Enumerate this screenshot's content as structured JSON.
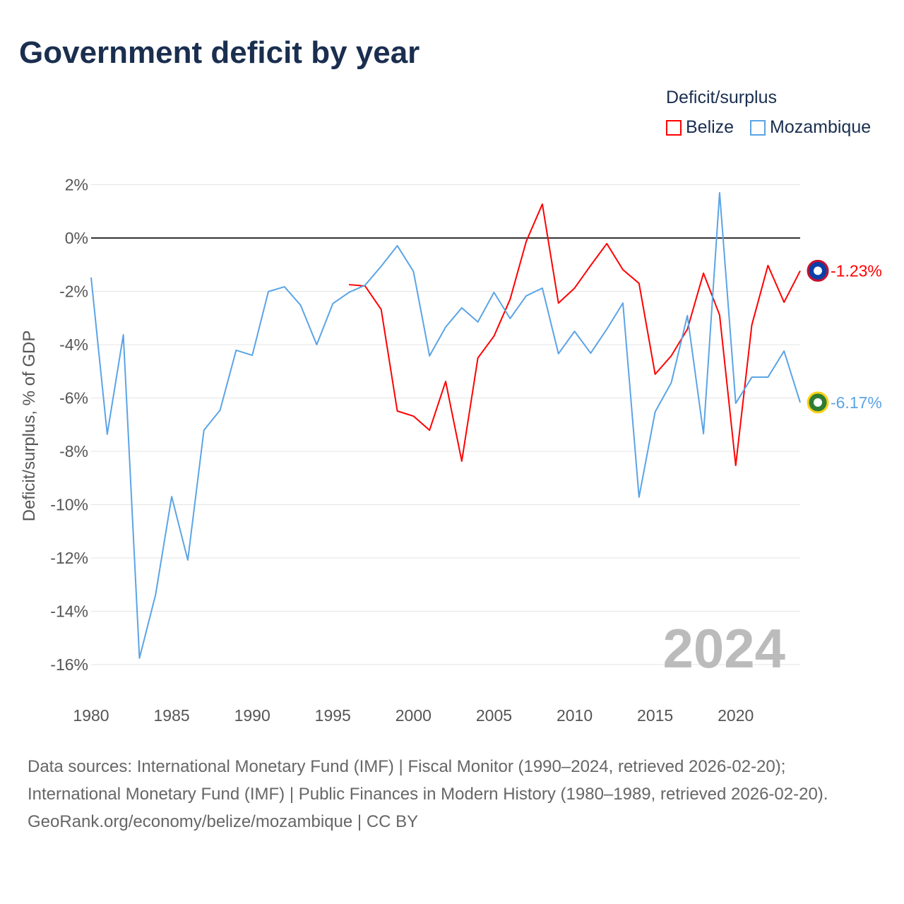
{
  "title": "Government deficit by year",
  "legend": {
    "title": "Deficit/surplus",
    "items": [
      {
        "label": "Belize",
        "color": "#ff0000"
      },
      {
        "label": "Mozambique",
        "color": "#5ba4e6"
      }
    ]
  },
  "watermark_year": "2024",
  "end_labels": {
    "belize": "-1.23%",
    "mozambique": "-6.17%"
  },
  "footer": {
    "sources": "Data sources: International Monetary Fund (IMF) | Fiscal Monitor (1990–2024, retrieved 2026-02-20); International Monetary Fund (IMF) | Public Finances in Modern History (1980–1989, retrieved 2026-02-20).",
    "credit": "GeoRank.org/economy/belize/mozambique | CC BY"
  },
  "chart_data": {
    "type": "line",
    "title": "Government deficit by year",
    "xlabel": "",
    "ylabel": "Deficit/surplus, % of GDP",
    "xlim": [
      1980,
      2024
    ],
    "ylim": [
      -16,
      2
    ],
    "xticks": [
      1980,
      1985,
      1990,
      1995,
      2000,
      2005,
      2010,
      2015,
      2020
    ],
    "yticks": [
      2,
      0,
      -2,
      -4,
      -6,
      -8,
      -10,
      -12,
      -14,
      -16
    ],
    "ytick_labels": [
      "2%",
      "0%",
      "-2%",
      "-4%",
      "-6%",
      "-8%",
      "-10%",
      "-12%",
      "-14%",
      "-16%"
    ],
    "grid": true,
    "legend_position": "top-right",
    "series": [
      {
        "name": "Belize",
        "color": "#ff0000",
        "x": [
          1996,
          1997,
          1998,
          1999,
          2000,
          2001,
          2002,
          2003,
          2004,
          2005,
          2006,
          2007,
          2008,
          2009,
          2010,
          2011,
          2012,
          2013,
          2014,
          2015,
          2016,
          2017,
          2018,
          2019,
          2020,
          2021,
          2022,
          2023,
          2024
        ],
        "values": [
          -1.75,
          -1.8,
          -2.68,
          -6.49,
          -6.68,
          -7.21,
          -5.38,
          -8.37,
          -4.5,
          -3.68,
          -2.3,
          -0.13,
          1.27,
          -2.44,
          -1.88,
          -1.03,
          -0.21,
          -1.19,
          -1.7,
          -5.11,
          -4.42,
          -3.42,
          -1.32,
          -2.89,
          -8.53,
          -3.26,
          -1.03,
          -2.41,
          -1.23
        ]
      },
      {
        "name": "Mozambique",
        "color": "#5ba4e6",
        "x": [
          1980,
          1981,
          1982,
          1983,
          1984,
          1985,
          1986,
          1987,
          1988,
          1989,
          1990,
          1991,
          1992,
          1993,
          1994,
          1995,
          1996,
          1997,
          1998,
          1999,
          2000,
          2001,
          2002,
          2003,
          2004,
          2005,
          2006,
          2007,
          2008,
          2009,
          2010,
          2011,
          2012,
          2013,
          2014,
          2015,
          2016,
          2017,
          2018,
          2019,
          2020,
          2021,
          2022,
          2023,
          2024
        ],
        "values": [
          -1.48,
          -7.36,
          -3.63,
          -15.76,
          -13.38,
          -9.7,
          -12.08,
          -7.21,
          -6.46,
          -4.21,
          -4.4,
          -2.01,
          -1.83,
          -2.52,
          -4.0,
          -2.46,
          -2.04,
          -1.77,
          -1.06,
          -0.29,
          -1.25,
          -4.42,
          -3.34,
          -2.62,
          -3.15,
          -2.04,
          -3.02,
          -2.17,
          -1.88,
          -4.34,
          -3.5,
          -4.32,
          -3.42,
          -2.44,
          -9.72,
          -6.52,
          -5.43,
          -2.91,
          -7.34,
          1.7,
          -6.2,
          -5.22,
          -5.22,
          -4.24,
          -6.17
        ]
      }
    ]
  }
}
